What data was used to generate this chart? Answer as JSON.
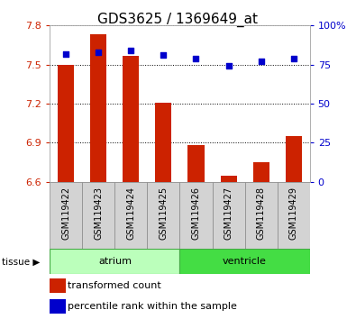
{
  "title": "GDS3625 / 1369649_at",
  "samples": [
    "GSM119422",
    "GSM119423",
    "GSM119424",
    "GSM119425",
    "GSM119426",
    "GSM119427",
    "GSM119428",
    "GSM119429"
  ],
  "transformed_counts": [
    7.5,
    7.73,
    7.57,
    7.21,
    6.88,
    6.65,
    6.75,
    6.95
  ],
  "percentile_ranks": [
    82,
    83,
    84,
    81,
    79,
    74,
    77,
    79
  ],
  "ylim_left": [
    6.6,
    7.8
  ],
  "ylim_right": [
    0,
    100
  ],
  "yticks_left": [
    6.6,
    6.9,
    7.2,
    7.5,
    7.8
  ],
  "yticks_right": [
    0,
    25,
    50,
    75,
    100
  ],
  "bar_color": "#cc2200",
  "dot_color": "#0000cc",
  "bar_width": 0.5,
  "groups": [
    {
      "label": "atrium",
      "samples": [
        0,
        1,
        2,
        3
      ],
      "color": "#bbffbb",
      "edge_color": "#44aa44"
    },
    {
      "label": "ventricle",
      "samples": [
        4,
        5,
        6,
        7
      ],
      "color": "#44dd44",
      "edge_color": "#44aa44"
    }
  ],
  "tick_label_color_left": "#cc2200",
  "tick_label_color_right": "#0000cc",
  "title_fontsize": 11,
  "tick_fontsize": 8,
  "label_fontsize": 7,
  "legend_fontsize": 8,
  "tissue_fontsize": 8
}
